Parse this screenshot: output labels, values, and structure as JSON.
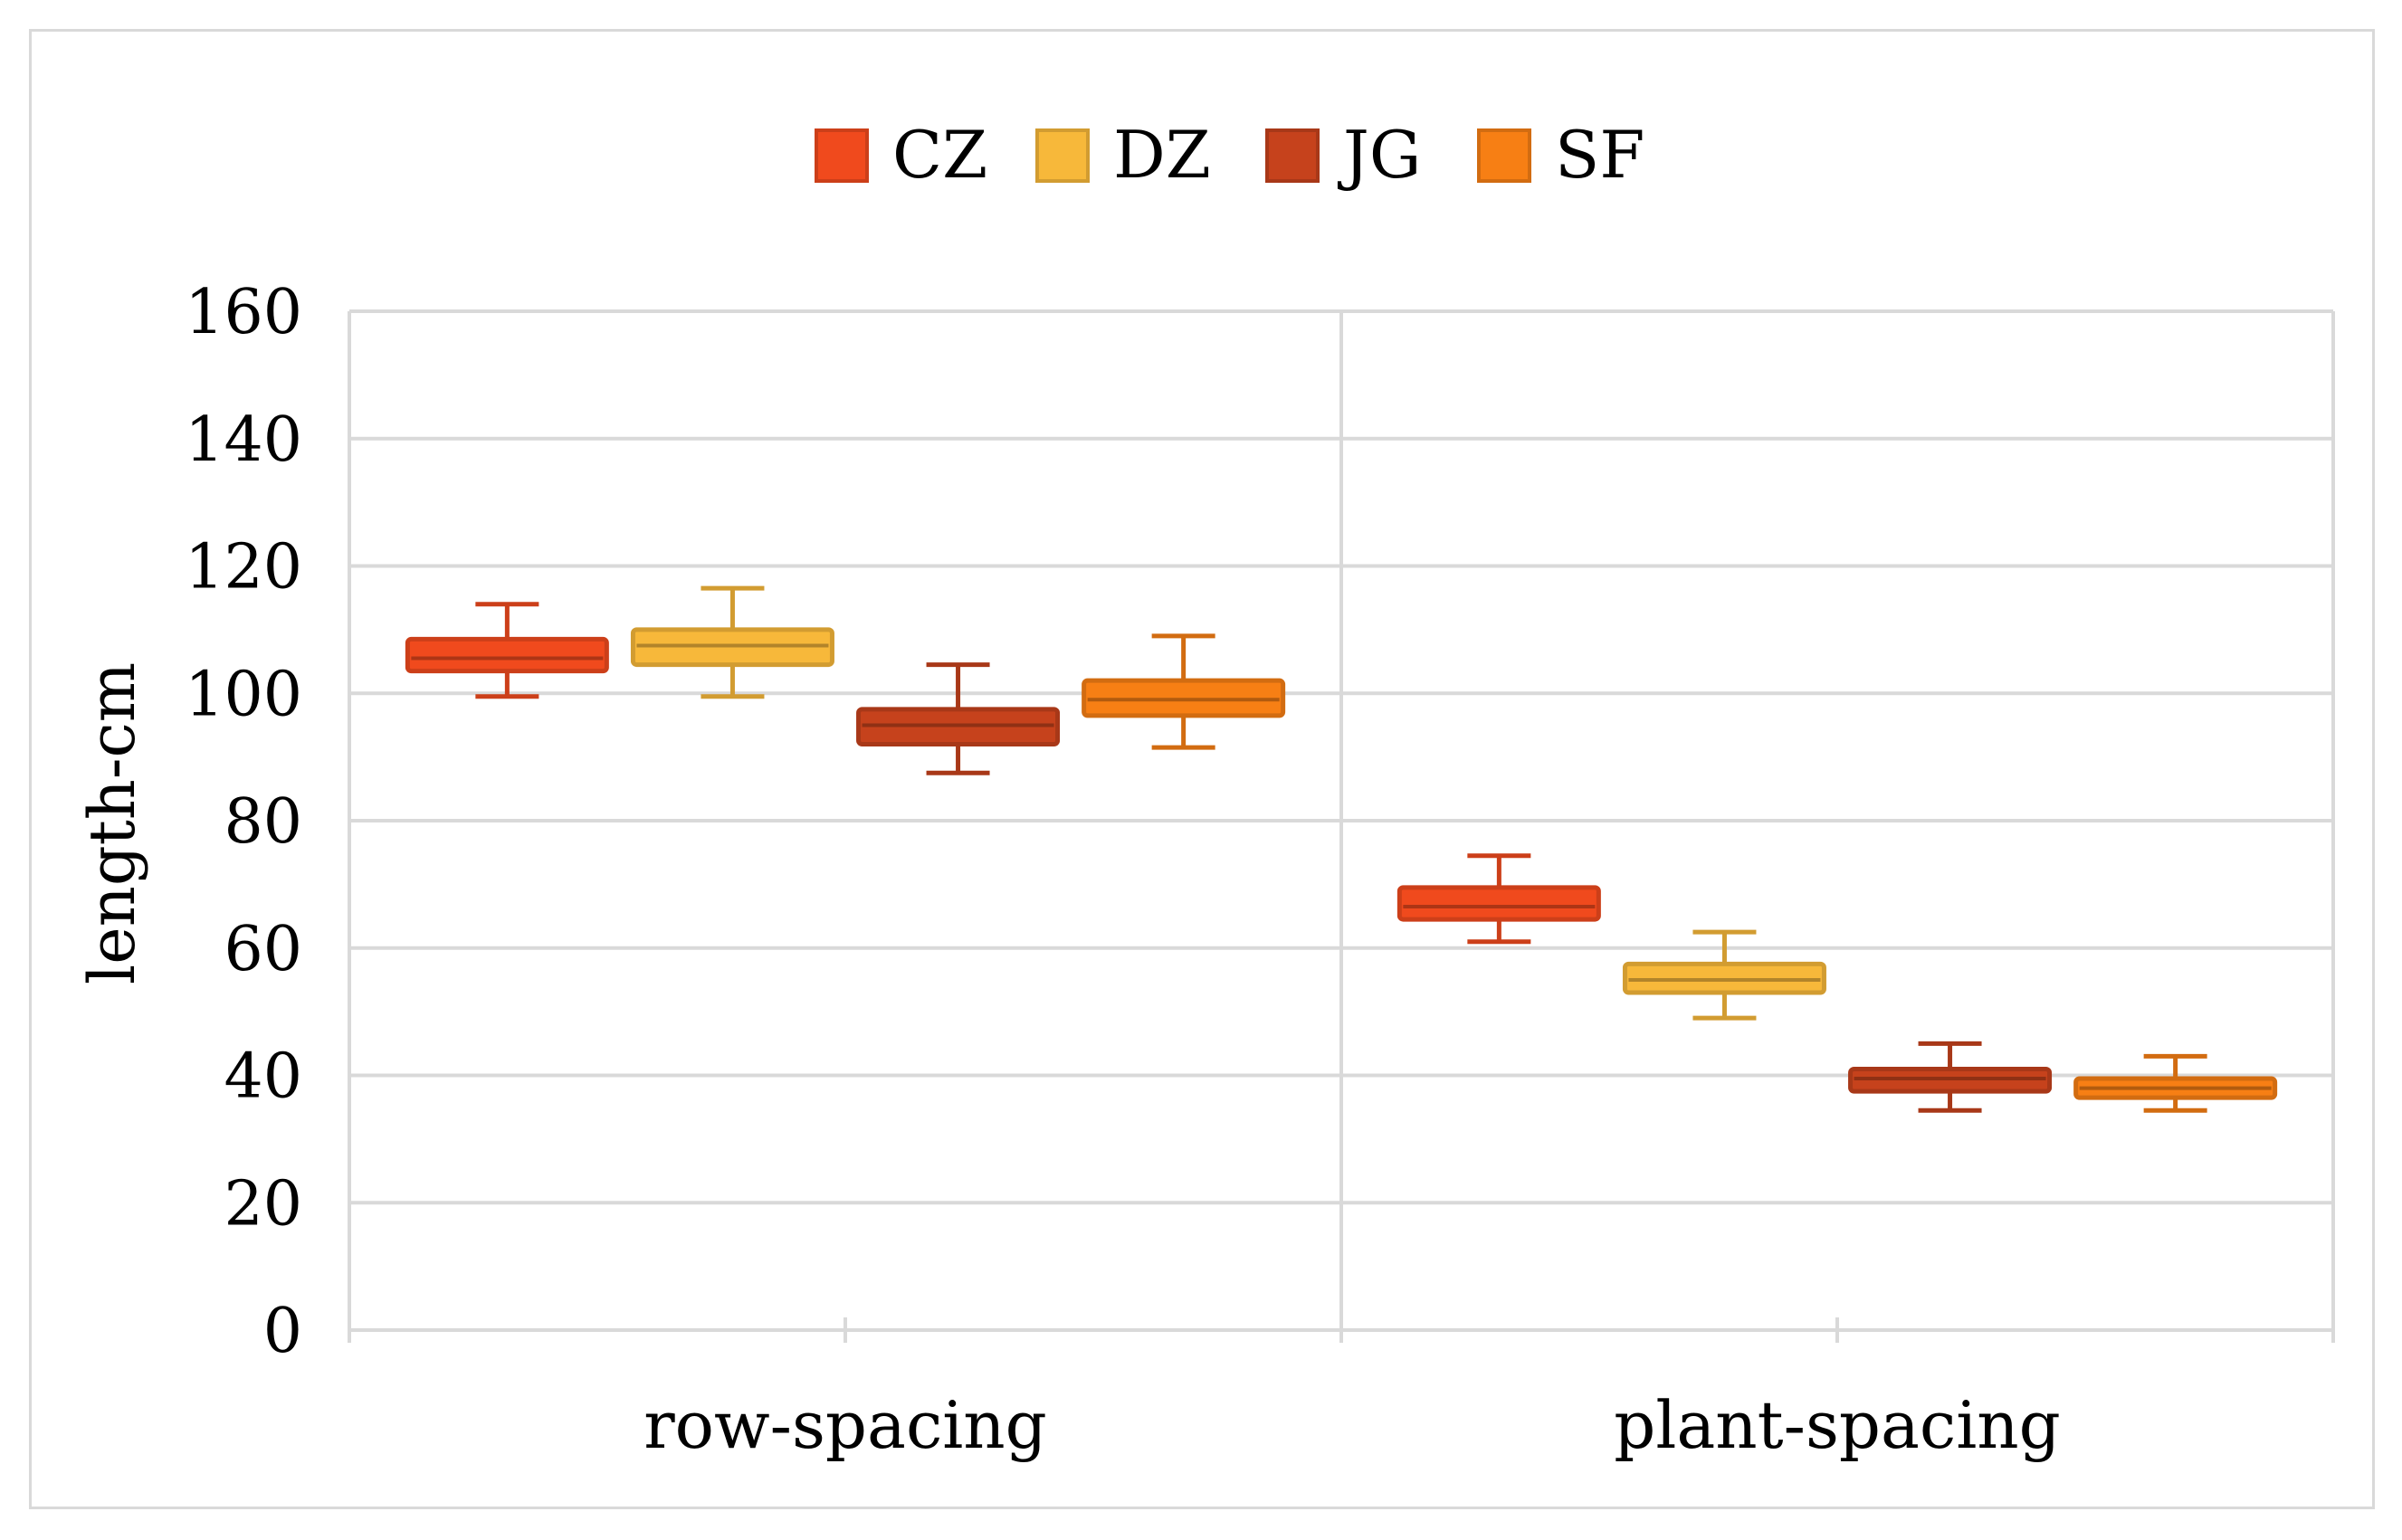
{
  "chart_data": {
    "type": "boxplot",
    "title": "",
    "xlabel": "",
    "ylabel": "length-cm",
    "ylim": [
      0,
      160
    ],
    "yticks": [
      "0",
      "20",
      "40",
      "60",
      "80",
      "100",
      "120",
      "140",
      "160"
    ],
    "grid": true,
    "legend_position": "top-center",
    "categories": [
      "row-spacing",
      "plant-spacing"
    ],
    "series": [
      {
        "name": "CZ",
        "color": "#f04a1d",
        "stats": [
          {
            "min": 99.5,
            "q1": 103.5,
            "median": 105.5,
            "q3": 108.5,
            "max": 114
          },
          {
            "min": 61,
            "q1": 64.5,
            "median": 66.5,
            "q3": 69.5,
            "max": 74.5
          }
        ]
      },
      {
        "name": "DZ",
        "color": "#f7b83a",
        "stats": [
          {
            "min": 99.5,
            "q1": 104.5,
            "median": 107.5,
            "q3": 110,
            "max": 116.5
          },
          {
            "min": 49,
            "q1": 53,
            "median": 55,
            "q3": 57.5,
            "max": 62.5
          }
        ]
      },
      {
        "name": "JG",
        "color": "#c6421c",
        "stats": [
          {
            "min": 87.5,
            "q1": 92,
            "median": 95,
            "q3": 97.5,
            "max": 104.5
          },
          {
            "min": 34.5,
            "q1": 37.5,
            "median": 39.5,
            "q3": 41,
            "max": 45
          }
        ]
      },
      {
        "name": "SF",
        "color": "#f77f14",
        "stats": [
          {
            "min": 91.5,
            "q1": 96.5,
            "median": 99,
            "q3": 102,
            "max": 109
          },
          {
            "min": 34.5,
            "q1": 36.5,
            "median": 38,
            "q3": 39.5,
            "max": 43
          }
        ]
      }
    ]
  }
}
